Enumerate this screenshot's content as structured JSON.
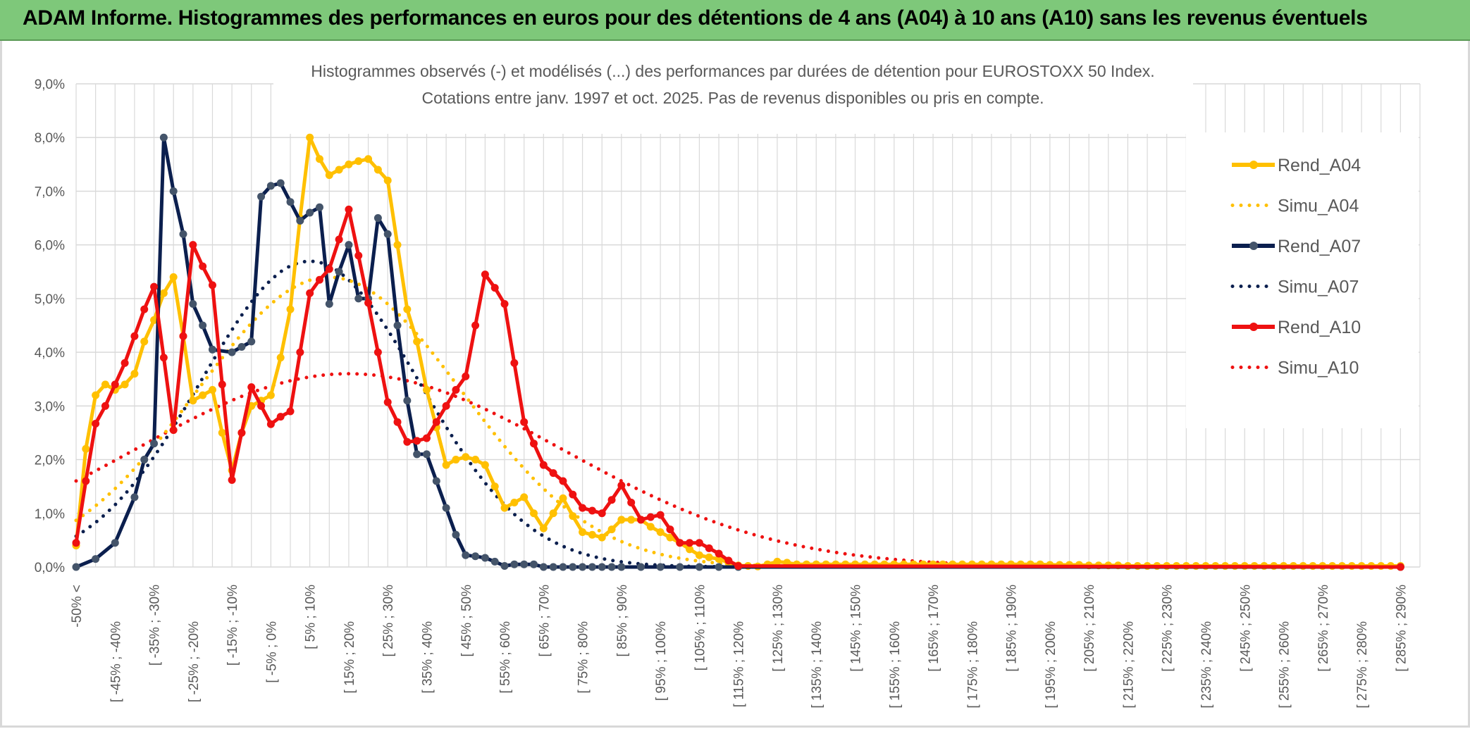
{
  "banner": {
    "title": "ADAM Informe. Histogrammes des performances en euros pour des détentions de 4 ans (A04) à 10 ans (A10) sans les revenus éventuels"
  },
  "chart_data": {
    "type": "line",
    "title_line1": "Histogrammes observés (-) et modélisés (...) des performances par durées de détention pour EUROSTOXX 50 Index.",
    "title_line2": "Cotations entre janv. 1997 et oct. 2025. Pas de revenus disponibles ou pris en compte.",
    "xlabel": "",
    "ylabel": "",
    "ylim": [
      0,
      9
    ],
    "y_ticks": [
      "0,0%",
      "1,0%",
      "2,0%",
      "3,0%",
      "4,0%",
      "5,0%",
      "6,0%",
      "7,0%",
      "8,0%",
      "9,0%"
    ],
    "grid": true,
    "legend_position": "right",
    "categories": [
      "-50% <",
      "[ -45% ; -40%",
      "[ -35% ; -30%",
      "[ -25% ; -20%",
      "[ -15% ; -10%",
      "[ -5% ; 0%",
      "[ 5% ; 10%",
      "[ 15% ; 20%",
      "[ 25% ; 30%",
      "[ 35% ; 40%",
      "[ 45% ; 50%",
      "[ 55% ; 60%",
      "[ 65% ; 70%",
      "[ 75% ; 80%",
      "[ 85% ; 90%",
      "[ 95% ; 100%",
      "[ 105% ; 110%",
      "[ 115% ; 120%",
      "[ 125% ; 130%",
      "[ 135% ; 140%",
      "[ 145% ; 150%",
      "[ 155% ; 160%",
      "[ 165% ; 170%",
      "[ 175% ; 180%",
      "[ 185% ; 190%",
      "[ 195% ; 200%",
      "[ 205% ; 210%",
      "[ 215% ; 220%",
      "[ 225% ; 230%",
      "[ 235% ; 240%",
      "[ 245% ; 250%",
      "[ 255% ; 260%",
      "[ 265% ; 270%",
      "[ 275% ; 280%",
      "[ 285% ; 290%"
    ],
    "series": [
      {
        "name": "Rend_A04",
        "color": "#ffc000",
        "style": "solid",
        "x": [
          -50,
          -47.5,
          -45,
          -42.5,
          -40,
          -37.5,
          -35,
          -32.5,
          -30,
          -27.5,
          -25,
          -22.5,
          -20,
          -17.5,
          -15,
          -12.5,
          -10,
          -7.5,
          -5,
          -2.5,
          0,
          2.5,
          5,
          7.5,
          10,
          12.5,
          15,
          17.5,
          20,
          22.5,
          25,
          27.5,
          30,
          32.5,
          35,
          37.5,
          40,
          42.5,
          45,
          47.5,
          50,
          52.5,
          55,
          57.5,
          60,
          62.5,
          65,
          67.5,
          70,
          72.5,
          75,
          77.5,
          80,
          82.5,
          85,
          87.5,
          90,
          92.5,
          95,
          97.5,
          100,
          102.5,
          105,
          107.5,
          110,
          112.5,
          115,
          117.5,
          120,
          122.5,
          125,
          127.5,
          130,
          132.5,
          135,
          137.5,
          140,
          142.5,
          145,
          147.5,
          150,
          152.5,
          155,
          157.5,
          160,
          162.5,
          165,
          167.5,
          170,
          172.5,
          175,
          177.5,
          180,
          182.5,
          185,
          187.5,
          190,
          192.5,
          195,
          197.5,
          200,
          202.5,
          205,
          207.5,
          210,
          212.5,
          215,
          217.5,
          220,
          222.5,
          225,
          227.5,
          230,
          232.5,
          235,
          237.5,
          240,
          242.5,
          245,
          247.5,
          250,
          252.5,
          255,
          257.5,
          260,
          262.5,
          265,
          267.5,
          270,
          272.5,
          275,
          277.5,
          280,
          282.5,
          285,
          287.5,
          290
        ],
        "values": [
          0.4,
          2.2,
          3.2,
          3.4,
          3.3,
          3.4,
          3.6,
          4.2,
          4.6,
          5.1,
          5.4,
          4.3,
          3.1,
          3.2,
          3.3,
          2.5,
          1.8,
          2.5,
          3.0,
          3.1,
          3.2,
          3.9,
          4.8,
          6.5,
          8.0,
          7.6,
          7.3,
          7.4,
          7.5,
          7.56,
          7.6,
          7.4,
          7.2,
          6.0,
          4.8,
          4.2,
          3.3,
          2.6,
          1.9,
          2.0,
          2.05,
          2.0,
          1.9,
          1.5,
          1.1,
          1.2,
          1.3,
          1.0,
          0.72,
          1.0,
          1.28,
          0.95,
          0.65,
          0.6,
          0.55,
          0.7,
          0.88,
          0.88,
          0.88,
          0.75,
          0.65,
          0.55,
          0.45,
          0.33,
          0.22,
          0.18,
          0.15,
          0.08,
          0.03,
          0.02,
          0.01,
          0.05,
          0.1,
          0.08,
          0.05,
          0.05,
          0.05,
          0.05,
          0.05,
          0.05,
          0.05,
          0.05,
          0.05,
          0.05,
          0.05,
          0.05,
          0.05,
          0.05,
          0.05,
          0.05,
          0.05,
          0.05,
          0.05,
          0.05,
          0.05,
          0.05,
          0.05,
          0.05,
          0.05,
          0.05,
          0.04,
          0.04,
          0.04,
          0.04,
          0.03,
          0.03,
          0.03,
          0.03,
          0.02,
          0.02,
          0.02,
          0.02,
          0.02,
          0.02,
          0.02,
          0.02,
          0.02,
          0.02,
          0.02,
          0.02,
          0.02,
          0.02,
          0.02,
          0.02,
          0.02,
          0.02,
          0.02,
          0.02,
          0.02,
          0.02,
          0.02,
          0.02,
          0.02,
          0.02,
          0.02,
          0.02,
          0.02
        ]
      },
      {
        "name": "Simu_A04",
        "color": "#ffc000",
        "style": "dotted",
        "model": {
          "mean": 15,
          "sd": 34,
          "peak": 5.4
        }
      },
      {
        "name": "Rend_A07",
        "color": "#0b1f4e",
        "style": "solid",
        "x": [
          -50,
          -45,
          -40,
          -35,
          -32.5,
          -30,
          -27.5,
          -25,
          -22.5,
          -20,
          -17.5,
          -15,
          -10,
          -7.5,
          -5,
          -2.5,
          0,
          2.5,
          5,
          7.5,
          10,
          12.5,
          15,
          17.5,
          20,
          22.5,
          25,
          27.5,
          30,
          32.5,
          35,
          37.5,
          40,
          42.5,
          45,
          47.5,
          50,
          52.5,
          55,
          57.5,
          60,
          62.5,
          65,
          67.5,
          70,
          72.5,
          75,
          77.5,
          80,
          82.5,
          85,
          87.5,
          90,
          95,
          100,
          105,
          110,
          115,
          120,
          290
        ],
        "values": [
          0.0,
          0.15,
          0.45,
          1.3,
          2.0,
          2.3,
          8.0,
          7.0,
          6.2,
          4.9,
          4.5,
          4.05,
          4.0,
          4.1,
          4.2,
          6.9,
          7.1,
          7.15,
          6.8,
          6.45,
          6.6,
          6.7,
          4.9,
          5.5,
          6.0,
          5.0,
          5.0,
          6.5,
          6.2,
          4.5,
          3.1,
          2.1,
          2.1,
          1.6,
          1.1,
          0.6,
          0.22,
          0.2,
          0.17,
          0.1,
          0.02,
          0.05,
          0.05,
          0.05,
          0.0,
          0.0,
          0.0,
          0.0,
          0.0,
          0.0,
          0.0,
          0.0,
          0.0,
          0.0,
          0.0,
          0.0,
          0.0,
          0.0,
          0.0,
          0.0
        ]
      },
      {
        "name": "Simu_A07",
        "color": "#0b1f4e",
        "style": "dotted",
        "model": {
          "mean": 10,
          "sd": 28,
          "peak": 5.7
        }
      },
      {
        "name": "Rend_A10",
        "color": "#ee1111",
        "style": "solid",
        "x": [
          -50,
          -47.5,
          -45,
          -42.5,
          -40,
          -37.5,
          -35,
          -32.5,
          -30,
          -27.5,
          -25,
          -22.5,
          -20,
          -17.5,
          -15,
          -12.5,
          -10,
          -7.5,
          -5,
          -2.5,
          0,
          2.5,
          5,
          7.5,
          10,
          12.5,
          15,
          17.5,
          20,
          22.5,
          25,
          27.5,
          30,
          32.5,
          35,
          37.5,
          40,
          42.5,
          45,
          47.5,
          50,
          52.5,
          55,
          57.5,
          60,
          62.5,
          65,
          67.5,
          70,
          72.5,
          75,
          77.5,
          80,
          82.5,
          85,
          87.5,
          90,
          92.5,
          95,
          97.5,
          100,
          102.5,
          105,
          107.5,
          110,
          112.5,
          115,
          117.5,
          120,
          290
        ],
        "values": [
          0.45,
          1.6,
          2.67,
          3.0,
          3.4,
          3.8,
          4.3,
          4.8,
          5.22,
          3.9,
          2.55,
          4.3,
          6.0,
          5.6,
          5.25,
          3.4,
          1.62,
          2.5,
          3.35,
          3.0,
          2.66,
          2.8,
          2.9,
          4.0,
          5.1,
          5.35,
          5.55,
          6.1,
          6.66,
          5.8,
          4.92,
          4.0,
          3.07,
          2.7,
          2.33,
          2.35,
          2.4,
          2.7,
          3.0,
          3.3,
          3.55,
          4.5,
          5.45,
          5.2,
          4.9,
          3.8,
          2.7,
          2.3,
          1.9,
          1.75,
          1.6,
          1.35,
          1.1,
          1.05,
          1.0,
          1.25,
          1.52,
          1.2,
          0.88,
          0.93,
          0.97,
          0.7,
          0.45,
          0.45,
          0.45,
          0.35,
          0.25,
          0.12,
          0.02,
          0.0
        ]
      },
      {
        "name": "Simu_A10",
        "color": "#ee1111",
        "style": "dotted",
        "model": {
          "mean": 20,
          "sd": 55,
          "peak": 3.6
        }
      }
    ]
  }
}
